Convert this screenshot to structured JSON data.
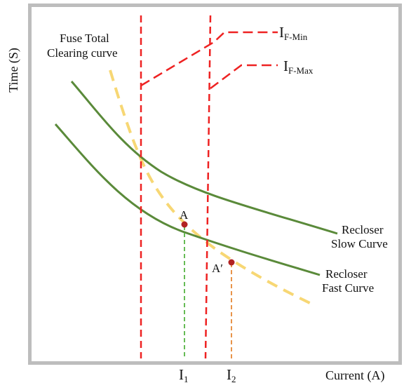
{
  "chart_data": {
    "type": "line",
    "xlabel": "Current (A)",
    "ylabel": "Time (S)",
    "grid": false,
    "colors": {
      "frame": "#bdbdbd",
      "recloser": "#5a8a3a",
      "fuse": "#f7d774",
      "limit": "#ee2222",
      "point": "#b22222",
      "drop_a": "#66bb55",
      "drop_a2": "#e8944a"
    },
    "series": [
      {
        "label": "Fuse Total Clearing curve"
      },
      {
        "label_line1": "Recloser",
        "label_line2": "Slow Curve"
      },
      {
        "label_line1": "Recloser",
        "label_line2": "Fast Curve"
      }
    ],
    "limits": [
      {
        "label": "I",
        "sub": "F-Min"
      },
      {
        "label": "I",
        "sub": "F-Max"
      }
    ],
    "points": [
      {
        "label": "A"
      },
      {
        "label": "A′"
      }
    ],
    "ticks": [
      {
        "label": "I",
        "sub": "1"
      },
      {
        "label": "I",
        "sub": "2"
      }
    ]
  }
}
